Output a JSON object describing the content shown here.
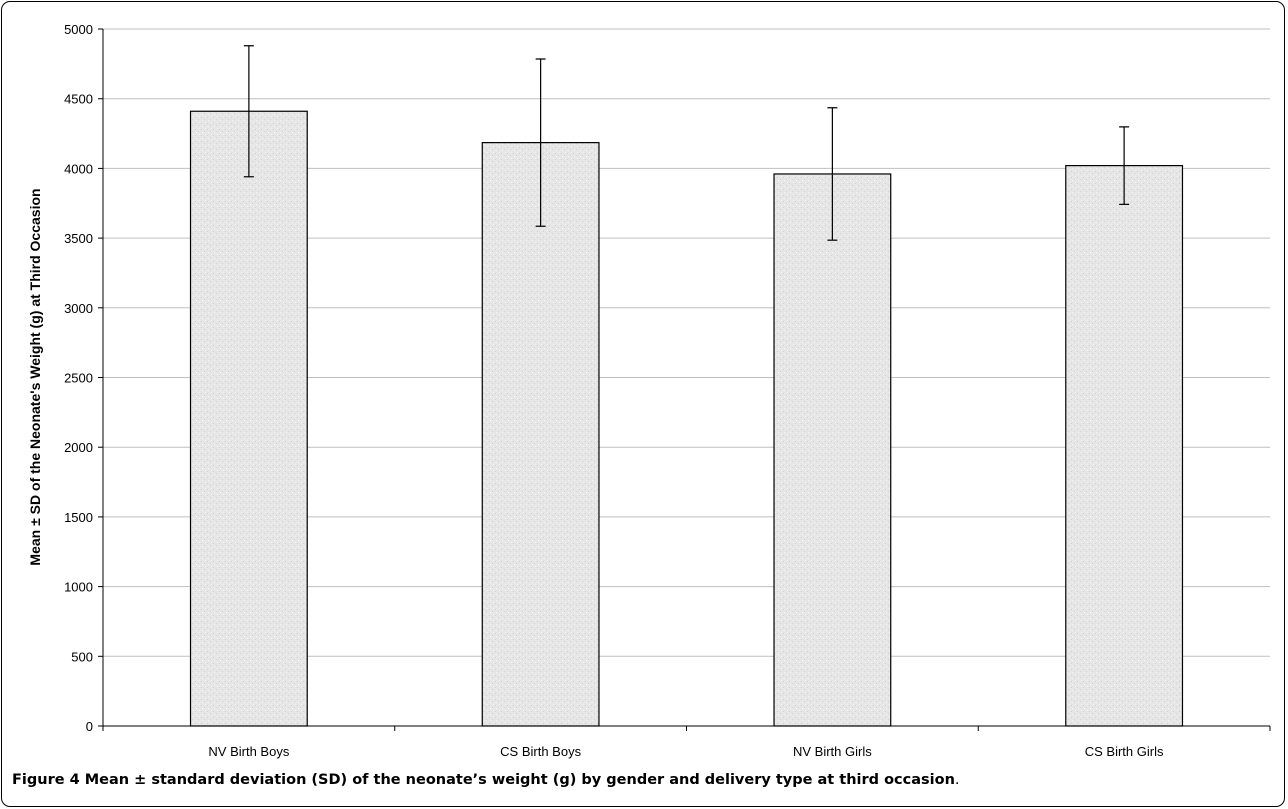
{
  "chart_data": {
    "type": "bar",
    "categories": [
      "NV Birth Boys",
      "CS Birth Boys",
      "NV Birth Girls",
      "CS Birth Girls"
    ],
    "values": [
      4410,
      4185,
      3960,
      4020
    ],
    "error_sd": [
      470,
      600,
      475,
      278
    ],
    "title": "",
    "xlabel": "",
    "ylabel": "Mean ± SD of the Neonate's Weight (g) at Third Occasion",
    "ylim": [
      0,
      5000
    ],
    "yticks": [
      0,
      500,
      1000,
      1500,
      2000,
      2500,
      3000,
      3500,
      4000,
      4500,
      5000
    ],
    "grid": true,
    "legend": "none",
    "colors": {
      "bar_fill": "#e4e4e4",
      "bar_stroke": "#000000",
      "grid": "#bfbfbf"
    }
  },
  "caption": {
    "label": "Figure 4",
    "text": " Mean ± standard deviation (SD) of the neonate’s weight (g) by gender and delivery type at third occasion",
    "end": "."
  }
}
